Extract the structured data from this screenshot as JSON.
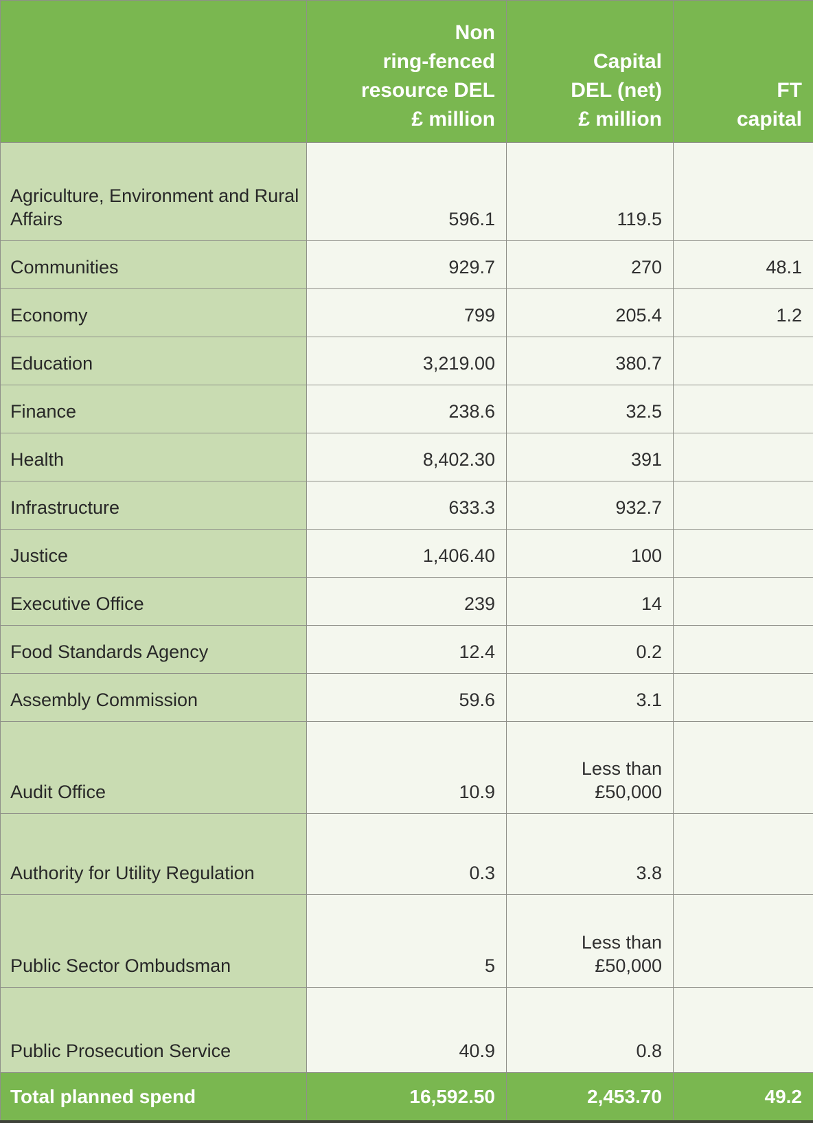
{
  "header": {
    "col0": "",
    "col1": "Non\nring-fenced\nresource DEL\n£ million",
    "col2": "Capital\nDEL (net)\n£ million",
    "col3": "FT\ncapital"
  },
  "rows": [
    {
      "label": "Agriculture, Environment and Rural Affairs",
      "resource": "596.1",
      "capital": "119.5",
      "ft": ""
    },
    {
      "label": "Communities",
      "resource": "929.7",
      "capital": "270",
      "ft": "48.1"
    },
    {
      "label": "Economy",
      "resource": "799",
      "capital": "205.4",
      "ft": "1.2"
    },
    {
      "label": "Education",
      "resource": "3,219.00",
      "capital": "380.7",
      "ft": ""
    },
    {
      "label": "Finance",
      "resource": "238.6",
      "capital": "32.5",
      "ft": ""
    },
    {
      "label": "Health",
      "resource": "8,402.30",
      "capital": "391",
      "ft": ""
    },
    {
      "label": "Infrastructure",
      "resource": "633.3",
      "capital": "932.7",
      "ft": ""
    },
    {
      "label": "Justice",
      "resource": "1,406.40",
      "capital": "100",
      "ft": ""
    },
    {
      "label": "Executive Office",
      "resource": "239",
      "capital": "14",
      "ft": ""
    },
    {
      "label": "Food Standards Agency",
      "resource": "12.4",
      "capital": "0.2",
      "ft": ""
    },
    {
      "label": "Assembly Commission",
      "resource": "59.6",
      "capital": "3.1",
      "ft": ""
    },
    {
      "label": "Audit Office",
      "resource": "10.9",
      "capital": "Less than\n£50,000",
      "ft": ""
    },
    {
      "label": "Authority for Utility Regulation",
      "resource": "0.3",
      "capital": "3.8",
      "ft": ""
    },
    {
      "label": "Public Sector Ombudsman",
      "resource": "5",
      "capital": "Less than\n£50,000",
      "ft": ""
    },
    {
      "label": "Public Prosecution Service",
      "resource": "40.9",
      "capital": "0.8",
      "ft": ""
    }
  ],
  "total": {
    "label": "Total planned spend",
    "resource": "16,592.50",
    "capital": "2,453.70",
    "ft": "49.2"
  },
  "colors": {
    "header_green": "#7ab750",
    "label_green": "#c9dcb2",
    "cell_cream": "#f4f7ee",
    "grid_line": "#8f9089",
    "text_dark": "#303030",
    "total_text": "#ffffff"
  }
}
